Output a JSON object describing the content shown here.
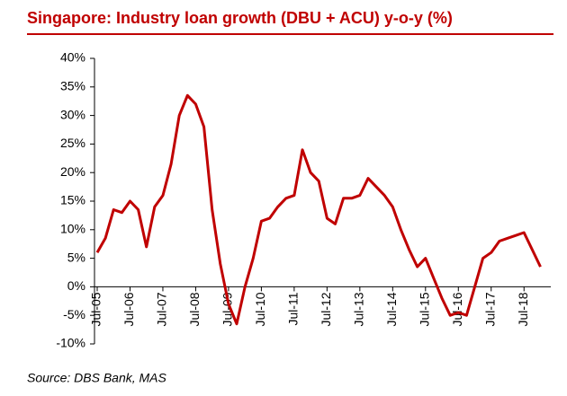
{
  "chart_data": {
    "type": "line",
    "title": "Singapore: Industry loan growth (DBU + ACU) y-o-y (%)",
    "source": "Source: DBS Bank, MAS",
    "categories": [
      "Jul-05",
      null,
      null,
      null,
      "Jul-06",
      null,
      null,
      null,
      "Jul-07",
      null,
      null,
      null,
      "Jul-08",
      null,
      null,
      null,
      "Jul-09",
      null,
      null,
      null,
      "Jul-10",
      null,
      null,
      null,
      "Jul-11",
      null,
      null,
      null,
      "Jul-12",
      null,
      null,
      null,
      "Jul-13",
      null,
      null,
      null,
      "Jul-14",
      null,
      null,
      null,
      "Jul-15",
      null,
      null,
      null,
      "Jul-16",
      null,
      null,
      null,
      "Jul-17",
      null,
      null,
      null,
      "Jul-18",
      null,
      null
    ],
    "series": [
      {
        "color": "#c00000",
        "values": [
          6,
          8.5,
          13.5,
          13,
          15,
          13.5,
          7,
          14,
          16,
          21.5,
          30,
          33.5,
          32,
          28,
          13.5,
          4,
          -3,
          -6.5,
          0,
          5,
          11.5,
          12,
          14,
          15.5,
          16,
          24,
          20,
          18.5,
          12,
          11,
          15.5,
          15.5,
          16,
          19,
          17.5,
          16,
          14,
          10,
          6.5,
          3.5,
          5,
          1.5,
          -2,
          -5,
          -4.5,
          -5,
          0,
          5,
          6,
          8,
          8.5,
          9,
          9.5,
          6.5,
          3.5
        ]
      }
    ],
    "ylim": [
      -10,
      40
    ],
    "yticks": [
      {
        "value": -10,
        "label": "-10%"
      },
      {
        "value": -5,
        "label": "-5%"
      },
      {
        "value": 0,
        "label": "0%"
      },
      {
        "value": 5,
        "label": "5%"
      },
      {
        "value": 10,
        "label": "10%"
      },
      {
        "value": 15,
        "label": "15%"
      },
      {
        "value": 20,
        "label": "20%"
      },
      {
        "value": 25,
        "label": "25%"
      },
      {
        "value": 30,
        "label": "30%"
      },
      {
        "value": 35,
        "label": "35%"
      },
      {
        "value": 40,
        "label": "40%"
      }
    ]
  }
}
